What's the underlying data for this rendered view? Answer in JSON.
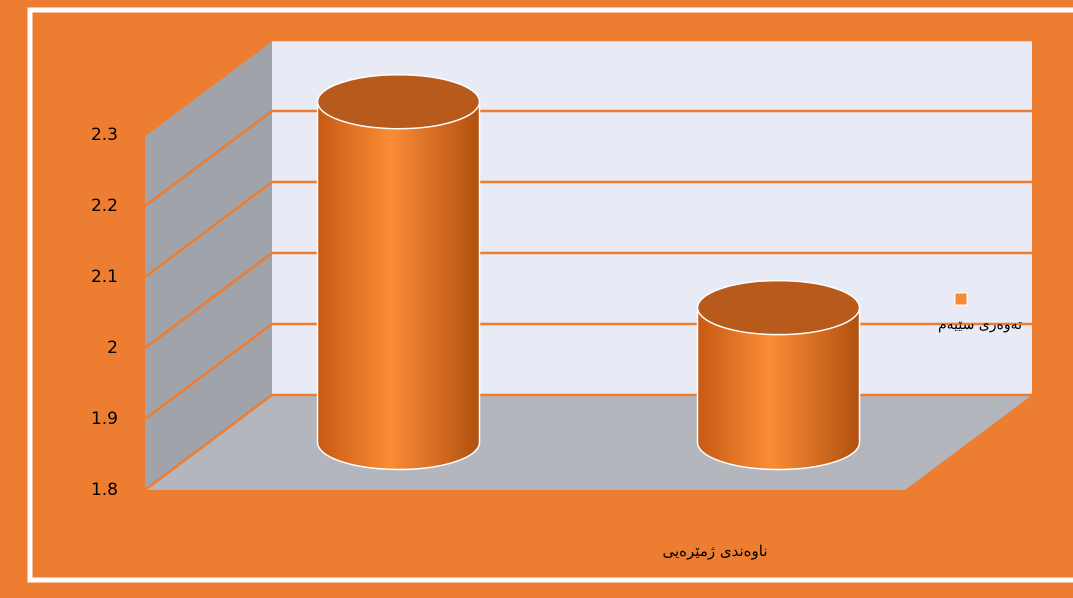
{
  "chart_data": {
    "type": "bar3d_cylinder",
    "x_label": "ناوەندی ژمێرەیی",
    "categories": [
      null,
      null
    ],
    "series": [
      {
        "name": "تەوەری سێیەم",
        "color": "#f58a32",
        "values": [
          2.28,
          1.99
        ]
      }
    ],
    "ylim": [
      1.8,
      2.3
    ],
    "yticks": [
      1.8,
      1.9,
      2,
      2.1,
      2.2,
      2.3
    ],
    "grid": true,
    "legend": "right"
  }
}
